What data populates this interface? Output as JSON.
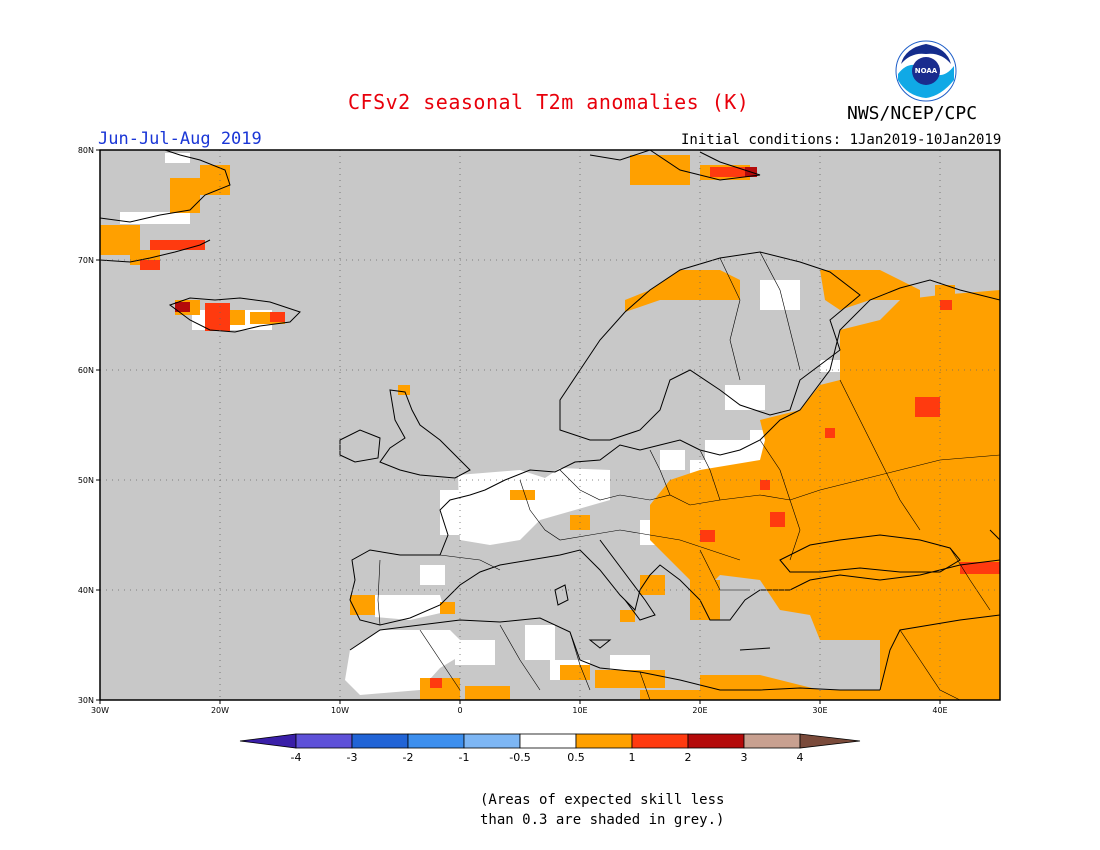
{
  "header": {
    "title": "CFSv2 seasonal T2m anomalies (K)",
    "agency": "NWS/NCEP/CPC",
    "period": "Jun-Jul-Aug 2019",
    "initial_conditions": "Initial conditions: 1Jan2019-10Jan2019",
    "logo_text": "NOAA"
  },
  "map": {
    "lon_range": [
      -30,
      45
    ],
    "lat_range": [
      30,
      80
    ],
    "lon_ticks": [
      "30W",
      "20W",
      "10W",
      "0",
      "10E",
      "20E",
      "30E",
      "40E"
    ],
    "lat_ticks": [
      "30N",
      "40N",
      "50N",
      "60N",
      "70N",
      "80N"
    ],
    "background": "#c8c8c8",
    "grid": "dotted"
  },
  "colorbar": {
    "ticks": [
      "-4",
      "-3",
      "-2",
      "-1",
      "-0.5",
      "0.5",
      "1",
      "2",
      "3",
      "4"
    ],
    "colors": [
      "#3a1fa8",
      "#5e51d8",
      "#2164d6",
      "#3d8fee",
      "#7db6f4",
      "#ffffff",
      "#ffa000",
      "#ff3a0f",
      "#b40a0a",
      "#c8a090",
      "#7a4a3a"
    ]
  },
  "note": {
    "line1": "(Areas of expected skill less",
    "line2": "than 0.3 are shaded in grey.)"
  }
}
